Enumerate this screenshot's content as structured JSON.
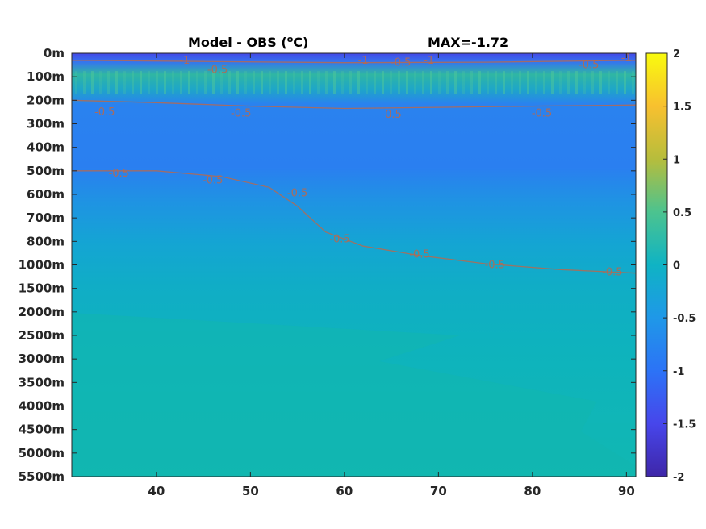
{
  "chart_data": {
    "type": "heatmap",
    "title_left": "Model - OBS (",
    "title_unit_sup": "o",
    "title_unit_tail": "C)",
    "title_right": "MAX=-1.72",
    "x": {
      "lim": [
        31,
        91
      ],
      "ticks": [
        40,
        50,
        60,
        70,
        80,
        90
      ]
    },
    "y": {
      "ticks": [
        "0m",
        "100m",
        "200m",
        "300m",
        "400m",
        "500m",
        "600m",
        "700m",
        "800m",
        "1000m",
        "1500m",
        "2000m",
        "2500m",
        "3000m",
        "3500m",
        "4000m",
        "4500m",
        "5000m",
        "5500m"
      ]
    },
    "colorbar": {
      "lim": [
        -2,
        2
      ],
      "ticks": [
        "2",
        "1.5",
        "1",
        "0.5",
        "0",
        "-0.5",
        "-1",
        "-1.5",
        "-2"
      ]
    },
    "contours": [
      {
        "level": -0.5,
        "points": [
          [
            31,
            0.3
          ],
          [
            45,
            0.35
          ],
          [
            60,
            0.4
          ],
          [
            75,
            0.38
          ],
          [
            91,
            0.3
          ]
        ]
      },
      {
        "level": -0.5,
        "points": [
          [
            31,
            2.0
          ],
          [
            40,
            2.1
          ],
          [
            50,
            2.25
          ],
          [
            60,
            2.35
          ],
          [
            70,
            2.3
          ],
          [
            80,
            2.25
          ],
          [
            91,
            2.2
          ]
        ]
      },
      {
        "level": -0.5,
        "points": [
          [
            31,
            5.0
          ],
          [
            40,
            5.0
          ],
          [
            47,
            5.25
          ],
          [
            52,
            5.7
          ],
          [
            55,
            6.5
          ],
          [
            58,
            7.6
          ],
          [
            62,
            8.2
          ],
          [
            68,
            8.6
          ],
          [
            75,
            8.95
          ],
          [
            83,
            9.2
          ],
          [
            91,
            9.35
          ]
        ]
      }
    ],
    "contour_labels": [
      {
        "text": "-1",
        "x": 43,
        "y": 0.3
      },
      {
        "text": "-0.5",
        "x": 46.5,
        "y": 0.7
      },
      {
        "text": "-1",
        "x": 62,
        "y": 0.3
      },
      {
        "text": "-0.5",
        "x": 66,
        "y": 0.4
      },
      {
        "text": "-1",
        "x": 69,
        "y": 0.3
      },
      {
        "text": "-0.5",
        "x": 86,
        "y": 0.5
      },
      {
        "text": "-1",
        "x": 90,
        "y": 0.2
      },
      {
        "text": "-0.5",
        "x": 34.5,
        "y": 2.5
      },
      {
        "text": "-0.5",
        "x": 49,
        "y": 2.55
      },
      {
        "text": "-0.5",
        "x": 65,
        "y": 2.6
      },
      {
        "text": "-0.5",
        "x": 81,
        "y": 2.55
      },
      {
        "text": "-0.5",
        "x": 36,
        "y": 5.1
      },
      {
        "text": "-0.5",
        "x": 46,
        "y": 5.4
      },
      {
        "text": "-0.5",
        "x": 55,
        "y": 5.95
      },
      {
        "text": "-0.5",
        "x": 59.5,
        "y": 7.9
      },
      {
        "text": "-0.5",
        "x": 68,
        "y": 8.55
      },
      {
        "text": "-0.5",
        "x": 76,
        "y": 9.0
      },
      {
        "text": "-0.5",
        "x": 88.5,
        "y": 9.3
      }
    ]
  }
}
